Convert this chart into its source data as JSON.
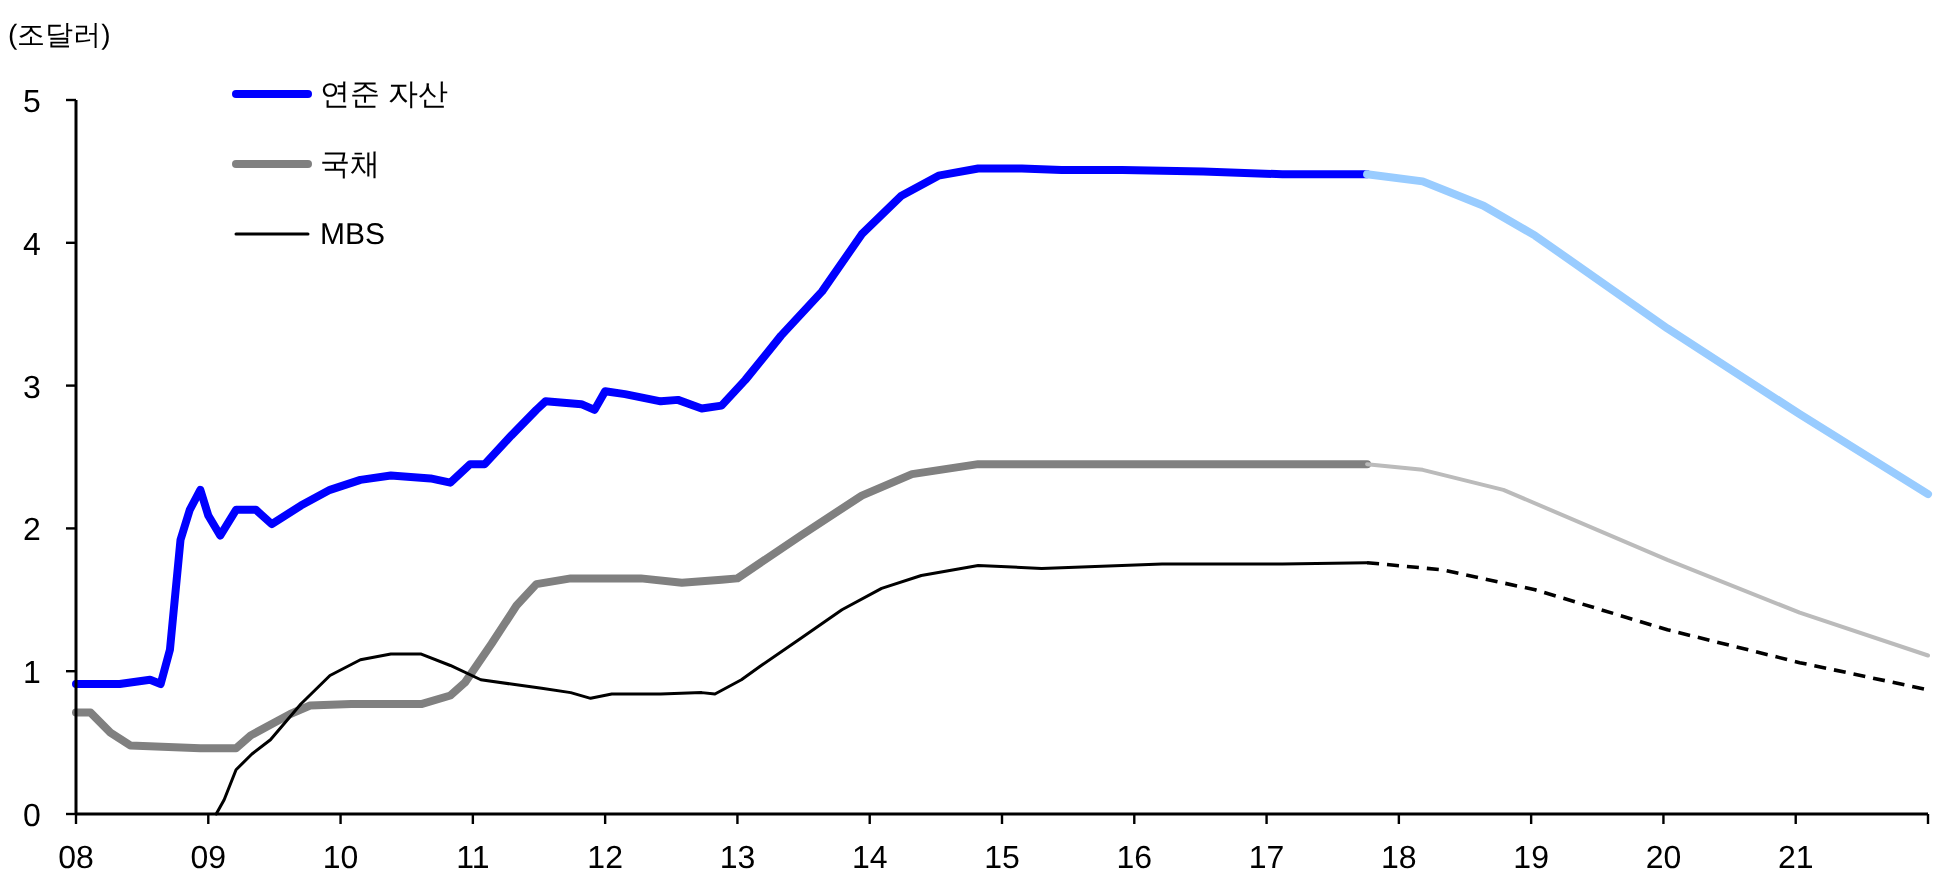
{
  "chart_data": {
    "type": "line",
    "ylabel": "(조달러)",
    "legend": "top left",
    "line_style": "solid",
    "xlim": [
      8,
      22
    ],
    "xticks": [
      {
        "value": 8,
        "label": "08"
      },
      {
        "value": 9,
        "label": "09"
      },
      {
        "value": 10,
        "label": "10"
      },
      {
        "value": 11,
        "label": "11"
      },
      {
        "value": 12,
        "label": "12"
      },
      {
        "value": 13,
        "label": "13"
      },
      {
        "value": 14,
        "label": "14"
      },
      {
        "value": 15,
        "label": "15"
      },
      {
        "value": 16,
        "label": "16"
      },
      {
        "value": 17,
        "label": "17"
      },
      {
        "value": 18,
        "label": "18"
      },
      {
        "value": 19,
        "label": "19"
      },
      {
        "value": 20,
        "label": "20"
      },
      {
        "value": 21,
        "label": "21"
      },
      {
        "value": 22,
        "label": null
      }
    ],
    "ylim": [
      0,
      5
    ],
    "yticks": [
      0,
      1,
      2,
      3,
      4,
      5
    ],
    "series": [
      {
        "name": "연준 자산",
        "color": "#0000ff",
        "x": [
          8.0,
          8.33,
          8.56,
          8.64,
          8.71,
          8.79,
          8.86,
          8.94,
          9.0,
          9.09,
          9.21,
          9.36,
          9.48,
          9.7,
          9.92,
          10.15,
          10.38,
          10.68,
          10.83,
          10.98,
          11.09,
          11.29,
          11.48,
          11.55,
          11.82,
          11.92,
          12.0,
          12.15,
          12.42,
          12.55,
          12.73,
          12.88,
          13.06,
          13.33,
          13.64,
          13.94,
          14.24,
          14.52,
          14.82,
          15.15,
          15.45,
          15.91,
          16.52,
          17.12,
          17.76
        ],
        "values": [
          0.91,
          0.91,
          0.94,
          0.91,
          1.15,
          1.92,
          2.13,
          2.27,
          2.09,
          1.95,
          2.13,
          2.13,
          2.03,
          2.16,
          2.27,
          2.34,
          2.37,
          2.35,
          2.32,
          2.45,
          2.45,
          2.65,
          2.83,
          2.89,
          2.87,
          2.83,
          2.96,
          2.94,
          2.89,
          2.9,
          2.84,
          2.86,
          3.04,
          3.35,
          3.66,
          4.06,
          4.33,
          4.47,
          4.52,
          4.52,
          4.51,
          4.51,
          4.5,
          4.48,
          4.48
        ]
      },
      {
        "name": "국채",
        "color": "#808080",
        "x": [
          8.0,
          8.11,
          8.26,
          8.41,
          8.94,
          9.21,
          9.32,
          9.62,
          9.77,
          10.08,
          10.61,
          10.83,
          10.94,
          11.14,
          11.33,
          11.48,
          11.74,
          11.97,
          12.27,
          12.58,
          12.88,
          13.0,
          13.48,
          13.94,
          14.32,
          14.82,
          17.76
        ],
        "values": [
          0.71,
          0.71,
          0.57,
          0.48,
          0.46,
          0.46,
          0.55,
          0.7,
          0.76,
          0.77,
          0.77,
          0.83,
          0.92,
          1.19,
          1.46,
          1.61,
          1.65,
          1.65,
          1.65,
          1.62,
          1.64,
          1.65,
          1.95,
          2.23,
          2.38,
          2.45,
          2.45
        ]
      },
      {
        "name": "MBS",
        "color": "#000000",
        "x": [
          9.06,
          9.12,
          9.21,
          9.33,
          9.47,
          9.7,
          9.92,
          10.15,
          10.38,
          10.61,
          10.83,
          11.06,
          11.29,
          11.52,
          11.74,
          11.89,
          12.05,
          12.42,
          12.73,
          12.83,
          13.03,
          13.18,
          13.48,
          13.79,
          14.09,
          14.39,
          14.82,
          15.3,
          16.21,
          17.12,
          17.76
        ],
        "values": [
          0,
          0.1,
          0.31,
          0.42,
          0.52,
          0.77,
          0.97,
          1.08,
          1.12,
          1.12,
          1.04,
          0.94,
          0.91,
          0.88,
          0.85,
          0.81,
          0.84,
          0.84,
          0.85,
          0.84,
          0.94,
          1.04,
          1.23,
          1.43,
          1.58,
          1.67,
          1.74,
          1.72,
          1.75,
          1.75,
          1.76
        ]
      },
      {
        "color": "#99ccff",
        "x": [
          17.76,
          18.18,
          18.64,
          19.03,
          20.03,
          21.03,
          22.0
        ],
        "values": [
          4.48,
          4.43,
          4.26,
          4.05,
          3.4,
          2.8,
          2.24
        ]
      },
      {
        "color": "#bbbbbb",
        "x": [
          17.76,
          18.18,
          18.79,
          20.03,
          21.03,
          22.0
        ],
        "values": [
          2.45,
          2.41,
          2.27,
          1.78,
          1.41,
          1.11
        ]
      },
      {
        "color": "#000000",
        "line_style": "dashed",
        "x": [
          17.76,
          18.33,
          19.03,
          20.03,
          21.03,
          22.0
        ],
        "values": [
          1.76,
          1.71,
          1.57,
          1.29,
          1.06,
          0.87
        ]
      }
    ]
  }
}
